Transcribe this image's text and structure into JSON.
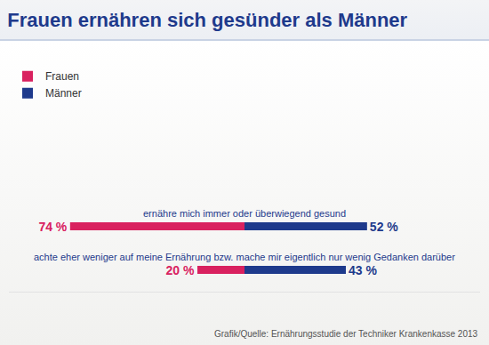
{
  "chart_data": {
    "type": "bar",
    "title": "Frauen ernähren sich gesünder als Männer",
    "orientation": "horizontal",
    "categories": [
      "ernähre mich immer oder überwiegend gesund",
      "achte eher weniger auf meine Ernährung bzw. mache mir eigentlich nur wenig Gedanken darüber"
    ],
    "series": [
      {
        "name": "Frauen",
        "color": "#d9215f",
        "values": [
          74,
          20
        ],
        "value_labels": [
          "74 %",
          "20 %"
        ]
      },
      {
        "name": "Männer",
        "color": "#1e3a8c",
        "values": [
          52,
          43
        ],
        "value_labels": [
          "52 %",
          "43 %"
        ]
      }
    ],
    "xlim": [
      0,
      100
    ],
    "tick_labels": false,
    "data_labels": true,
    "legend": "top left",
    "source": "Grafik/Quelle: Ernährungsstudie der Techniker Krankenkasse 2013"
  }
}
